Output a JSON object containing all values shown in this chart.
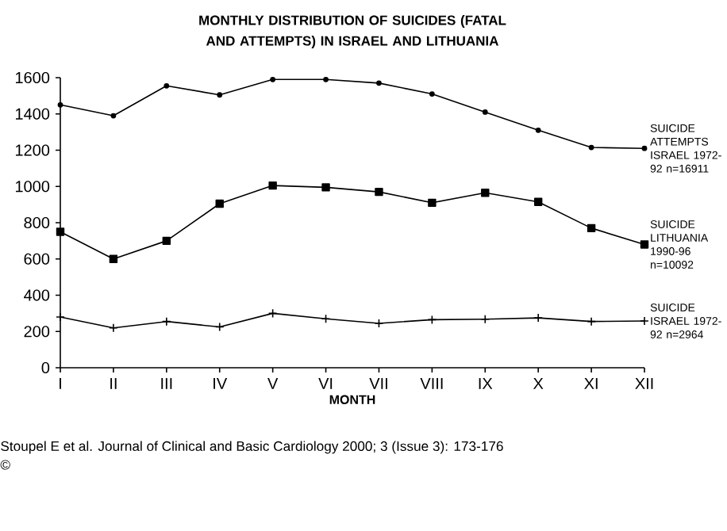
{
  "chart_data": {
    "type": "line",
    "title": "MONTHLY DISTRIBUTION OF SUICIDES (FATAL AND ATTEMPTS) IN ISRAEL AND LITHUANIA",
    "xlabel": "MONTH",
    "categories": [
      "I",
      "II",
      "III",
      "IV",
      "V",
      "VI",
      "VII",
      "VIII",
      "IX",
      "X",
      "XI",
      "XII"
    ],
    "ylim": [
      0,
      1600
    ],
    "yticks": [
      0,
      200,
      400,
      600,
      800,
      1000,
      1200,
      1400,
      1600
    ],
    "grid": false,
    "line_style": "solid",
    "series": [
      {
        "name": "SUICIDE ATTEMPTS ISRAEL 1972-92 n=16911",
        "color": "#000000",
        "marker": "circle",
        "values": [
          1450,
          1390,
          1555,
          1505,
          1590,
          1590,
          1570,
          1510,
          1410,
          1310,
          1215,
          1210
        ]
      },
      {
        "name": "SUICIDE LITHUANIA 1990-96 n=10092",
        "color": "#000000",
        "marker": "square",
        "values": [
          750,
          600,
          700,
          905,
          1005,
          995,
          970,
          910,
          965,
          915,
          770,
          680
        ]
      },
      {
        "name": "SUICIDE ISRAEL 1972-92 n=2964",
        "color": "#000000",
        "marker": "cross",
        "values": [
          280,
          220,
          255,
          225,
          300,
          270,
          245,
          265,
          268,
          275,
          255,
          258
        ]
      }
    ],
    "annotations": [
      "Stoupel E et al. Journal of Clinical and Basic Cardiology 2000; 3 (Issue 3): 173-176",
      "©"
    ]
  }
}
